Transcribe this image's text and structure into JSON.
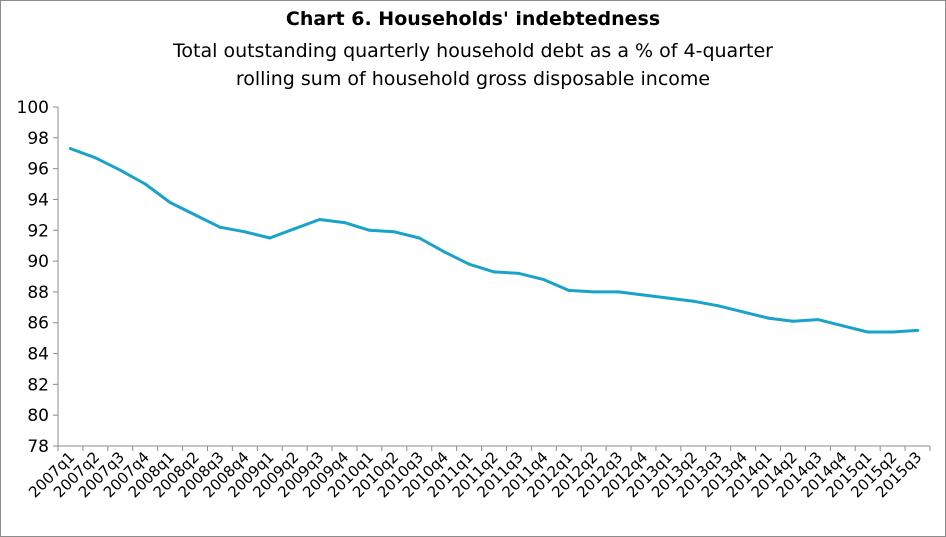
{
  "chart_data": {
    "type": "line",
    "title": "Chart 6. Households' indebtedness",
    "subtitle_line1": "Total outstanding quarterly household debt as a % of 4-quarter",
    "subtitle_line2": "rolling sum of household gross disposable income",
    "xlabel": "",
    "ylabel": "",
    "ylim": [
      78,
      100
    ],
    "yticks": [
      78,
      80,
      82,
      84,
      86,
      88,
      90,
      92,
      94,
      96,
      98,
      100
    ],
    "grid": false,
    "line_color": "#1aa3c9",
    "categories": [
      "2007q1",
      "2007q2",
      "2007q3",
      "2007q4",
      "2008q1",
      "2008q2",
      "2008q3",
      "2008q4",
      "2009q1",
      "2009q2",
      "2009q3",
      "2009q4",
      "2010q1",
      "2010q2",
      "2010q3",
      "2010q4",
      "2011q1",
      "2011q2",
      "2011q3",
      "2011q4",
      "2012q1",
      "2012q2",
      "2012q3",
      "2012q4",
      "2013q1",
      "2013q2",
      "2013q3",
      "2013q4",
      "2014q1",
      "2014q2",
      "2014q3",
      "2014q4",
      "2015q1",
      "2015q2",
      "2015q3"
    ],
    "series": [
      {
        "values": [
          97.3,
          96.7,
          95.9,
          95.0,
          93.8,
          93.0,
          92.2,
          91.9,
          91.5,
          92.1,
          92.7,
          92.5,
          92.0,
          91.9,
          91.5,
          90.6,
          89.8,
          89.3,
          89.2,
          88.8,
          88.1,
          88.0,
          88.0,
          87.8,
          87.6,
          87.4,
          87.1,
          86.7,
          86.3,
          86.1,
          86.2,
          85.8,
          85.4,
          85.4,
          85.5
        ]
      }
    ]
  }
}
